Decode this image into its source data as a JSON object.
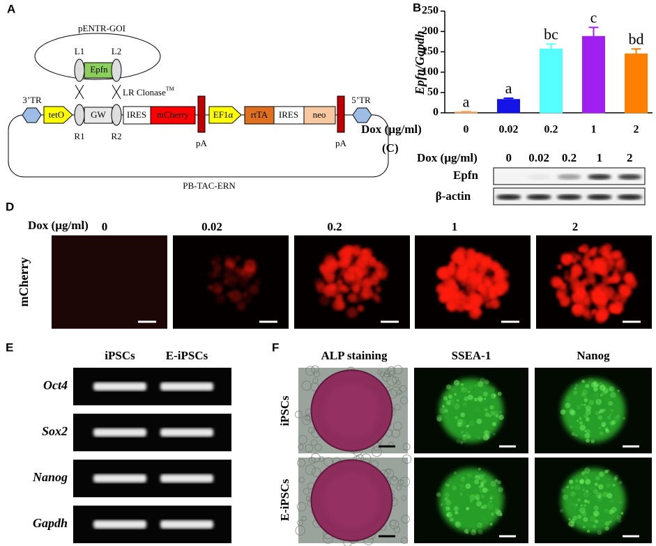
{
  "panel_labels": {
    "a": "A",
    "b": "B",
    "c": "(C)",
    "d": "D",
    "e": "E",
    "f": "F"
  },
  "diagram": {
    "donor": "pENTR-GOI",
    "l1": "L1",
    "l2": "L2",
    "gene": "Epfn",
    "recombinase": "LR Clonase",
    "trademark": "TM",
    "tr3": "3’TR",
    "tr5": "5’TR",
    "promoter": "tetO",
    "gw": "GW",
    "r1": "R1",
    "r2": "R2",
    "elements": [
      "IRES",
      "mCherry",
      "pA",
      "EF1α",
      "rtTA",
      "IRES",
      "neo",
      "pA"
    ],
    "vector": "PB-TAC-ERN"
  },
  "chart_data": {
    "type": "bar",
    "ylabel": "Epfn/Gapdh",
    "xlabel": "Dox (µg/ml)",
    "categories": [
      "0",
      "0.02",
      "0.2",
      "1",
      "2"
    ],
    "values": [
      2,
      33,
      157,
      188,
      145
    ],
    "errors": [
      1,
      3,
      12,
      22,
      12
    ],
    "annotations": [
      "a",
      "a",
      "bc",
      "c",
      "bd"
    ],
    "colors": [
      "#f4a460",
      "#1414e6",
      "#55ffff",
      "#a020f0",
      "#ff8000"
    ],
    "ylim": [
      0,
      250
    ],
    "yticks": [
      0,
      50,
      100,
      150,
      200,
      250
    ]
  },
  "western_blot": {
    "dose_label": "Dox (µg/ml)",
    "doses": [
      "0",
      "0.02",
      "0.2",
      "1",
      "2"
    ],
    "rows": [
      "Epfn",
      "β-actin"
    ]
  },
  "fluorescence": {
    "dose_label": "Dox (µg/ml)",
    "doses": [
      "0",
      "0.02",
      "0.2",
      "1",
      "2"
    ],
    "channel": "mCherry"
  },
  "rt_pcr": {
    "columns": [
      "iPSCs",
      "E-iPSCs"
    ],
    "genes": [
      "Oct4",
      "Sox2",
      "Nanog",
      "Gapdh"
    ]
  },
  "staining": {
    "columns": [
      "ALP staining",
      "SSEA-1",
      "Nanog"
    ],
    "rows": [
      "iPSCs",
      "E-iPSCs"
    ]
  }
}
